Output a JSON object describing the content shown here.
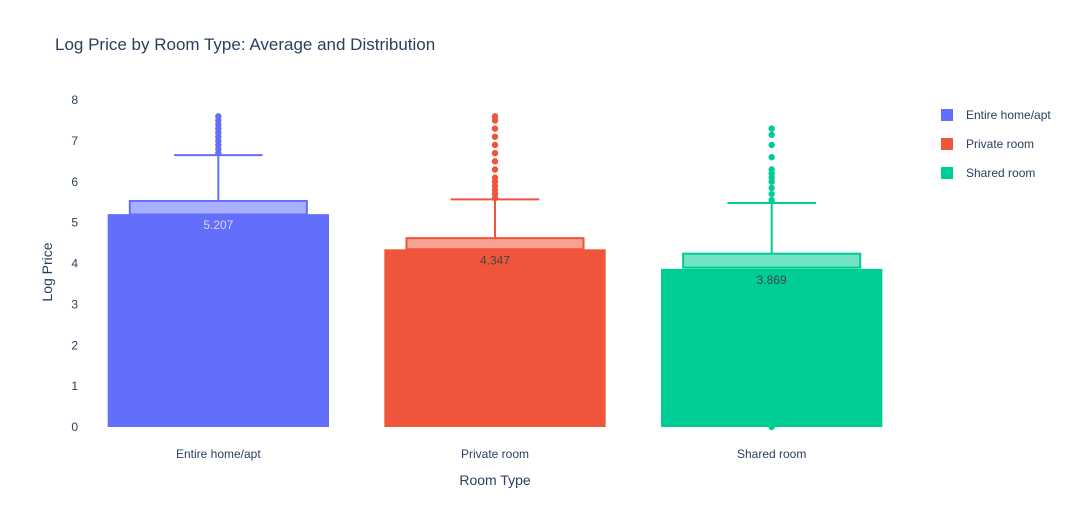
{
  "chart_data": {
    "type": "bar",
    "title": "Log Price by Room Type: Average and Distribution",
    "xlabel": "Room Type",
    "ylabel": "Log Price",
    "ylim": [
      0,
      8
    ],
    "yticks": [
      0,
      1,
      2,
      3,
      4,
      5,
      6,
      7,
      8
    ],
    "grid": false,
    "legend_position": "top-right",
    "categories": [
      "Entire home/apt",
      "Private room",
      "Shared room"
    ],
    "series": [
      {
        "name": "Entire home/apt",
        "color": "#636efa",
        "value": 5.207,
        "value_label": "5.207",
        "box": {
          "q1": 5.2,
          "q3": 5.53,
          "whisker_low": 5.2,
          "whisker_high": 6.65
        },
        "outliers": [
          6.7,
          6.8,
          6.9,
          7.0,
          7.1,
          7.2,
          7.3,
          7.4,
          7.5,
          7.6
        ]
      },
      {
        "name": "Private room",
        "color": "#ef553b",
        "value": 4.347,
        "value_label": "4.347",
        "box": {
          "q1": 4.35,
          "q3": 4.62,
          "whisker_low": 4.35,
          "whisker_high": 5.57
        },
        "outliers": [
          5.6,
          5.7,
          5.8,
          5.9,
          6.0,
          6.1,
          6.3,
          6.5,
          6.7,
          6.9,
          7.1,
          7.3,
          7.5,
          7.6
        ]
      },
      {
        "name": "Shared room",
        "color": "#00cc96",
        "value": 3.869,
        "value_label": "3.869",
        "box": {
          "q1": 3.9,
          "q3": 4.24,
          "whisker_low": 3.9,
          "whisker_high": 5.48
        },
        "outliers": [
          0.0,
          5.55,
          5.7,
          5.85,
          6.0,
          6.1,
          6.2,
          6.3,
          6.6,
          6.9,
          7.15,
          7.3
        ]
      }
    ]
  }
}
